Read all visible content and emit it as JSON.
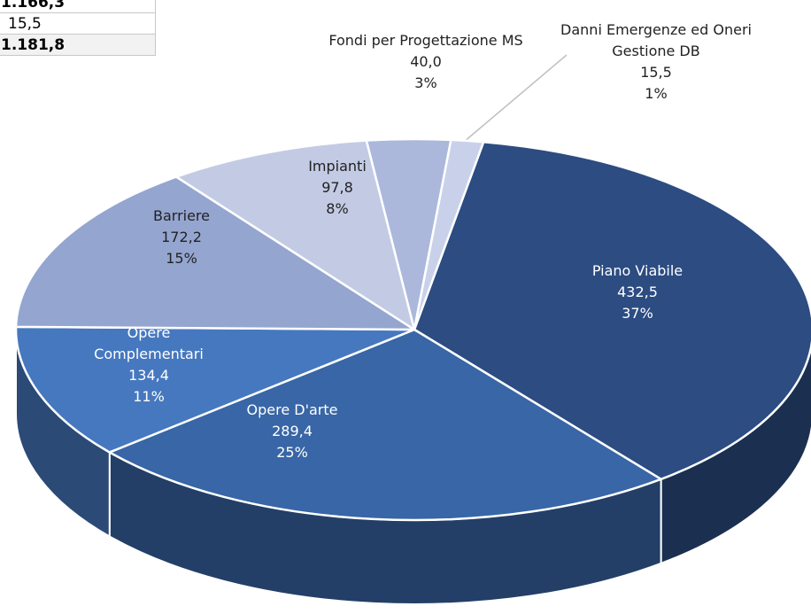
{
  "table": {
    "rows": [
      [
        "1.166,3"
      ],
      [
        "15,5"
      ],
      [
        "1.181,8"
      ]
    ]
  },
  "chart_data": {
    "type": "pie3d",
    "categories": [
      "Piano Viabile",
      "Opere D'arte",
      "Opere Complementari",
      "Barriere",
      "Impianti",
      "Fondi per Progettazione MS",
      "Danni Emergenze ed Oneri Gestione DB"
    ],
    "values": [
      432.5,
      289.4,
      134.4,
      172.2,
      97.8,
      40.0,
      15.5
    ],
    "value_labels": [
      "432,5",
      "289,4",
      "134,4",
      "172,2",
      "97,8",
      "40,0",
      "15,5"
    ],
    "percents": [
      37,
      25,
      11,
      15,
      8,
      3,
      1
    ],
    "percent_labels": [
      "37%",
      "25%",
      "11%",
      "15%",
      "8%",
      "3%",
      "1%"
    ],
    "colors": [
      "#2c4c82",
      "#3866a6",
      "#4678bf",
      "#94a5d0",
      "#c3cbe4",
      "#abb8dc",
      "#c9d1ea"
    ]
  }
}
